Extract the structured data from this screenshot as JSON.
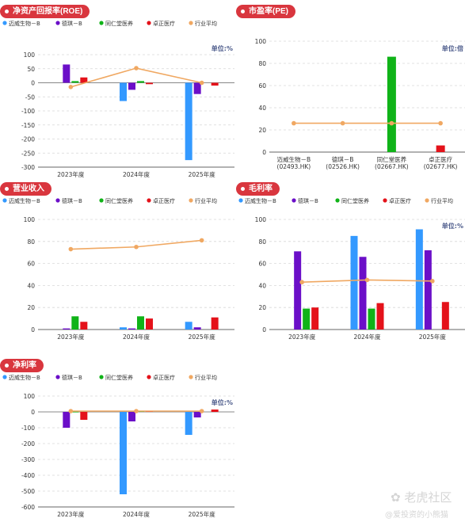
{
  "legend_names": [
    "迈威生物－B",
    "德琪－B",
    "同仁堂医养",
    "卓正医疗",
    "行业平均"
  ],
  "colors": {
    "s1": "#3399ff",
    "s2": "#6b0fc8",
    "s3": "#10b318",
    "s4": "#e4121a",
    "avg": "#f0a862",
    "badge": "#d9363e"
  },
  "charts": {
    "roe": {
      "title": "净资产回报率(ROE)"
    },
    "pe": {
      "title": "市盈率(PE)"
    },
    "revenue": {
      "title": "营业收入"
    },
    "gm": {
      "title": "毛利率"
    },
    "np": {
      "title": "净利率"
    }
  },
  "chart_data": [
    {
      "id": "roe",
      "type": "bar",
      "categories": [
        "2023年度",
        "2024年度",
        "2025年度"
      ],
      "unit": "单位:%",
      "ylim": [
        -300,
        100
      ],
      "yticks": [
        100,
        50,
        0,
        -50,
        -100,
        -150,
        -200,
        -250,
        -300
      ],
      "legend": true,
      "series": [
        {
          "name": "迈威生物－B",
          "values": [
            0,
            -65,
            -275
          ]
        },
        {
          "name": "德琪－B",
          "values": [
            65,
            -25,
            -40
          ]
        },
        {
          "name": "同仁堂医养",
          "values": [
            6,
            6,
            0
          ]
        },
        {
          "name": "卓正医疗",
          "values": [
            19,
            -5,
            -10
          ]
        }
      ],
      "avg": {
        "name": "行业平均",
        "values": [
          -15,
          52,
          0
        ]
      }
    },
    {
      "id": "pe",
      "type": "bar",
      "categories": [
        "迈威生物－B\n(02493.HK)",
        "德琪－B\n(02526.HK)",
        "同仁堂医养\n(02667.HK)",
        "卓正医疗\n(02677.HK)"
      ],
      "unit": "单位:倍",
      "ylim": [
        0,
        100
      ],
      "yticks": [
        100,
        80,
        60,
        40,
        20,
        0
      ],
      "legend": false,
      "series": [
        {
          "name": "市盈率",
          "values": [
            0,
            0,
            86,
            6
          ]
        }
      ],
      "avg": {
        "name": "行业平均",
        "values": [
          26,
          26,
          26,
          26
        ]
      }
    },
    {
      "id": "revenue",
      "type": "bar",
      "categories": [
        "2023年度",
        "2024年度",
        "2025年度"
      ],
      "unit": "",
      "ylim": [
        0,
        100
      ],
      "yticks": [
        100,
        80,
        60,
        40,
        20,
        0
      ],
      "legend": true,
      "series": [
        {
          "name": "迈威生物－B",
          "values": [
            0,
            2,
            7
          ]
        },
        {
          "name": "德琪－B",
          "values": [
            1,
            1,
            2
          ]
        },
        {
          "name": "同仁堂医养",
          "values": [
            12,
            12,
            0
          ]
        },
        {
          "name": "卓正医疗",
          "values": [
            7,
            10,
            11
          ]
        }
      ],
      "avg": {
        "name": "行业平均",
        "values": [
          73,
          75,
          81
        ]
      }
    },
    {
      "id": "gm",
      "type": "bar",
      "categories": [
        "2023年度",
        "2024年度",
        "2025年度"
      ],
      "unit": "单位:%",
      "ylim": [
        0,
        100
      ],
      "yticks": [
        100,
        80,
        60,
        40,
        20,
        0
      ],
      "legend": true,
      "series": [
        {
          "name": "迈威生物－B",
          "values": [
            0,
            85,
            91
          ]
        },
        {
          "name": "德琪－B",
          "values": [
            71,
            66,
            72
          ]
        },
        {
          "name": "同仁堂医养",
          "values": [
            19,
            19,
            0
          ]
        },
        {
          "name": "卓正医疗",
          "values": [
            20,
            24,
            25
          ]
        }
      ],
      "avg": {
        "name": "行业平均",
        "values": [
          43,
          45,
          44
        ]
      }
    },
    {
      "id": "np",
      "type": "bar",
      "categories": [
        "2023年度",
        "2024年度",
        "2025年度"
      ],
      "unit": "单位:%",
      "ylim": [
        -600,
        100
      ],
      "yticks": [
        100,
        0,
        -100,
        -200,
        -300,
        -400,
        -500,
        -600
      ],
      "legend": true,
      "series": [
        {
          "name": "迈威生物－B",
          "values": [
            0,
            -520,
            -145
          ]
        },
        {
          "name": "德琪－B",
          "values": [
            -100,
            -60,
            -35
          ]
        },
        {
          "name": "同仁堂医养",
          "values": [
            2,
            5,
            0
          ]
        },
        {
          "name": "卓正医疗",
          "values": [
            -50,
            5,
            15
          ]
        }
      ],
      "avg": {
        "name": "行业平均",
        "values": [
          5,
          5,
          5
        ]
      }
    }
  ],
  "watermark": {
    "brand": "老虎社区",
    "author": "@爱投资的小熊猫"
  }
}
